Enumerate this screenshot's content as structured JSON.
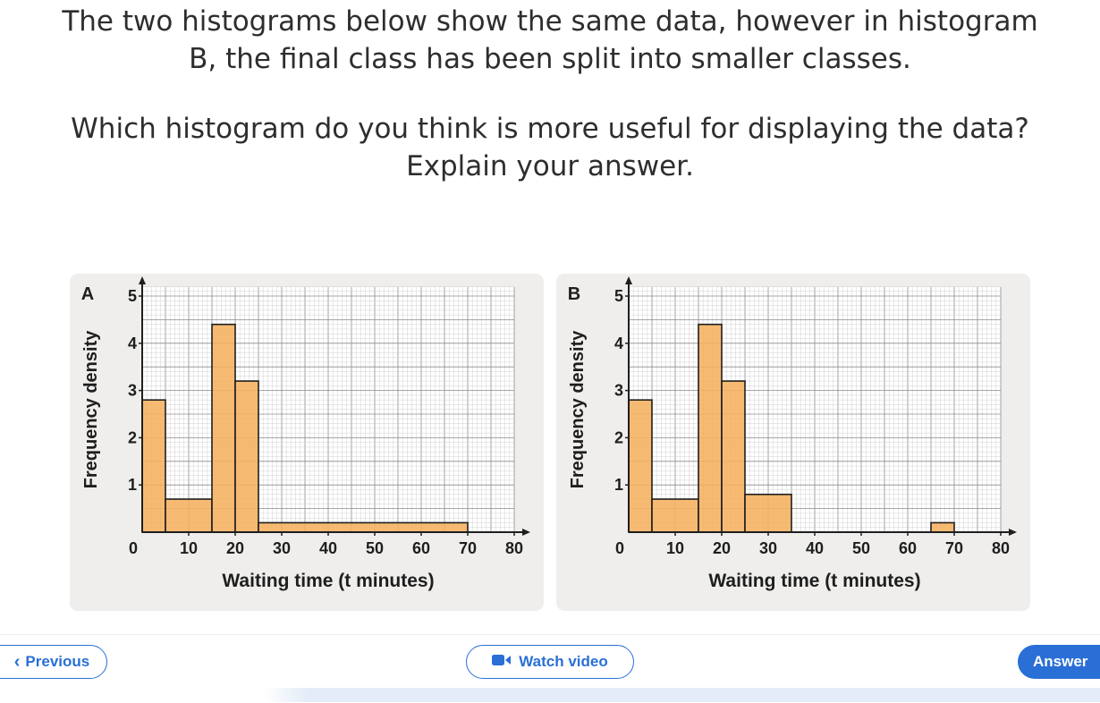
{
  "question": {
    "line1": "The two histograms below show the same data, however in histogram",
    "line2": "B, the final class has been split into smaller classes.",
    "line3": "Which histogram do you think is more useful for displaying the data?",
    "line4": "Explain your answer."
  },
  "nav": {
    "previous_label": "Previous",
    "video_label": "Watch video",
    "answer_label": "Answer",
    "accent_color": "#2a6fd6"
  },
  "colors": {
    "bar_fill": "#f5b15e",
    "grid_minor": "#c7c7c7",
    "grid_major": "#8c8c8c",
    "panel_bg": "#efeeec"
  },
  "chart_data": [
    {
      "type": "bar",
      "label": "A",
      "xlabel": "Waiting time (t minutes)",
      "ylabel": "Frequency density",
      "xlim": [
        0,
        80
      ],
      "ylim": [
        0,
        5
      ],
      "x_ticks": [
        0,
        10,
        20,
        30,
        40,
        50,
        60,
        70,
        80
      ],
      "y_ticks": [
        0,
        1,
        2,
        3,
        4,
        5
      ],
      "bins": [
        {
          "from": 0,
          "to": 5,
          "value": 2.8
        },
        {
          "from": 5,
          "to": 15,
          "value": 0.7
        },
        {
          "from": 15,
          "to": 20,
          "value": 4.4
        },
        {
          "from": 20,
          "to": 25,
          "value": 3.2
        },
        {
          "from": 25,
          "to": 70,
          "value": 0.2
        }
      ],
      "grid": true
    },
    {
      "type": "bar",
      "label": "B",
      "xlabel": "Waiting time (t minutes)",
      "ylabel": "Frequency density",
      "xlim": [
        0,
        80
      ],
      "ylim": [
        0,
        5
      ],
      "x_ticks": [
        0,
        10,
        20,
        30,
        40,
        50,
        60,
        70,
        80
      ],
      "y_ticks": [
        0,
        1,
        2,
        3,
        4,
        5
      ],
      "bins": [
        {
          "from": 0,
          "to": 5,
          "value": 2.8
        },
        {
          "from": 5,
          "to": 15,
          "value": 0.7
        },
        {
          "from": 15,
          "to": 20,
          "value": 4.4
        },
        {
          "from": 20,
          "to": 25,
          "value": 3.2
        },
        {
          "from": 25,
          "to": 35,
          "value": 0.8
        },
        {
          "from": 35,
          "to": 65,
          "value": 0
        },
        {
          "from": 65,
          "to": 70,
          "value": 0.2
        }
      ],
      "grid": true
    }
  ]
}
